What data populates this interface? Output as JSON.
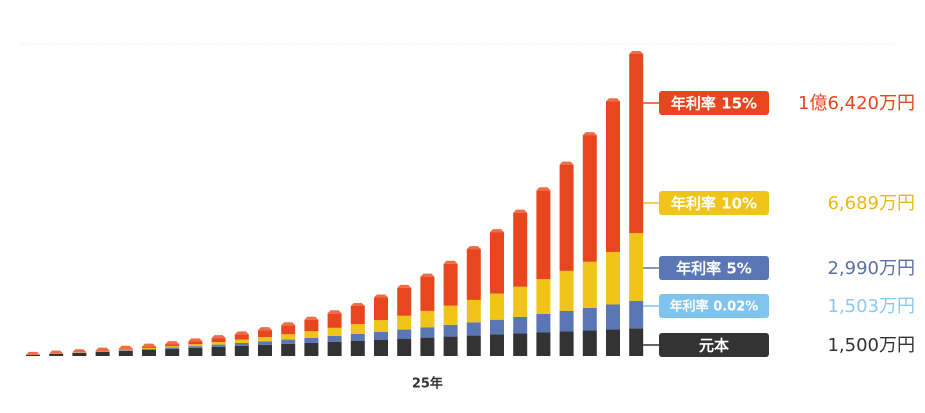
{
  "chart_data": {
    "type": "stacked_bar",
    "categories": [
      null,
      null,
      null,
      null,
      null,
      null,
      null,
      null,
      null,
      null,
      null,
      null,
      null,
      null,
      null,
      null,
      null,
      "25年",
      null,
      null,
      null,
      null,
      null,
      null,
      null,
      null,
      null
    ],
    "series": [
      {
        "name": "元本",
        "color": "#333333",
        "label": "1,500万円",
        "label_color": "#333333",
        "values": [
          56,
          111,
          167,
          222,
          278,
          333,
          389,
          444,
          500,
          556,
          611,
          667,
          722,
          778,
          833,
          889,
          944,
          1000,
          1056,
          1111,
          1167,
          1222,
          1278,
          1333,
          1389,
          1444,
          1500
        ]
      },
      {
        "name": "年利率 0.02%",
        "color": "#7ec4ef",
        "label": "1,503万円",
        "label_color": "#8cc8ee",
        "values": [
          0,
          0,
          0,
          0,
          0,
          0,
          0,
          0,
          0,
          1,
          1,
          1,
          1,
          1,
          1,
          1,
          1,
          1,
          1,
          2,
          2,
          2,
          2,
          2,
          2,
          3,
          3
        ]
      },
      {
        "name": "年利率 5%",
        "color": "#5b76b5",
        "label": "2,990万円",
        "label_color": "#5b6fa6",
        "values": [
          1,
          5,
          12,
          22,
          35,
          51,
          70,
          93,
          120,
          151,
          185,
          225,
          266,
          312,
          370,
          428,
          492,
          561,
          637,
          718,
          805,
          901,
          1003,
          1112,
          1229,
          1354,
          1487
        ]
      },
      {
        "name": "年利率 10%",
        "color": "#f0c419",
        "label": "6,689万円",
        "label_color": "#e8b917",
        "values": [
          1,
          5,
          12,
          22,
          36,
          54,
          75,
          106,
          141,
          183,
          233,
          290,
          361,
          442,
          528,
          632,
          753,
          890,
          1045,
          1221,
          1421,
          1644,
          1899,
          2181,
          2503,
          2856,
          3699
        ]
      },
      {
        "name": "年利率 15%",
        "color": "#e8461e",
        "label": "1億6,420万円",
        "label_color": "#e8461e",
        "values": [
          1,
          6,
          14,
          28,
          47,
          73,
          111,
          154,
          212,
          285,
          375,
          487,
          623,
          788,
          988,
          1230,
          1517,
          1864,
          2276,
          2761,
          3342,
          4024,
          4827,
          5776,
          6887,
          8196,
          9731
        ]
      }
    ]
  }
}
